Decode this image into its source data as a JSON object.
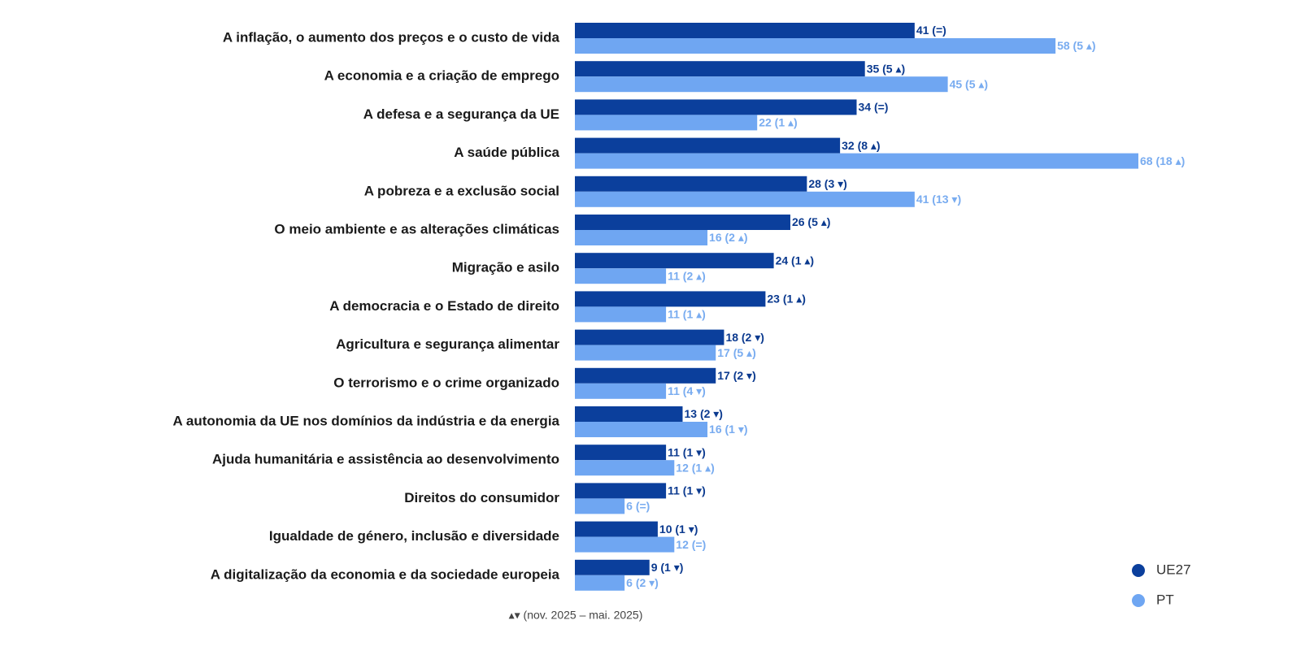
{
  "chart_data": {
    "type": "hbar",
    "categories": [
      "A inflação, o aumento dos preços e o custo de vida",
      "A economia e a criação de emprego",
      "A defesa e a segurança da UE",
      "A saúde pública",
      "A pobreza e a exclusão social",
      "O meio ambiente e as alterações climáticas",
      "Migração e asilo",
      "A democracia e o Estado de direito",
      "Agricultura e segurança alimentar",
      "O terrorismo e o crime organizado",
      "A autonomia da UE nos domínios da indústria e da energia",
      "Ajuda humanitária e assistência ao desenvolvimento",
      "Direitos do consumidor",
      "Igualdade de género, inclusão e diversidade",
      "A digitalização da economia e da sociedade europeia"
    ],
    "series": [
      {
        "name": "UE27",
        "color": "#0b3f9c",
        "label_color": "#0b3a8f",
        "values": [
          41,
          35,
          34,
          32,
          28,
          26,
          24,
          23,
          18,
          17,
          13,
          11,
          11,
          10,
          9
        ],
        "value_labels": [
          "41 (=)",
          "35 (5 ▴)",
          "34 (=)",
          "32 (8 ▴)",
          "28 (3 ▾)",
          "26 (5 ▴)",
          "24 (1 ▴)",
          "23 (1 ▴)",
          "18 (2 ▾)",
          "17 (2 ▾)",
          "13 (2 ▾)",
          "11 (1 ▾)",
          "11 (1 ▾)",
          "10 (1 ▾)",
          "9 (1 ▾)"
        ]
      },
      {
        "name": "PT",
        "color": "#6fa6f2",
        "label_color": "#79acf0",
        "values": [
          58,
          45,
          22,
          68,
          41,
          16,
          11,
          11,
          17,
          11,
          16,
          12,
          6,
          12,
          6
        ],
        "value_labels": [
          "58 (5 ▴)",
          "45 (5 ▴)",
          "22 (1 ▴)",
          "68 (18 ▴)",
          "41 (13 ▾)",
          "16 (2 ▴)",
          "11 (2 ▴)",
          "11 (1 ▴)",
          "17 (5 ▴)",
          "11 (4 ▾)",
          "16 (1 ▾)",
          "12 (1 ▴)",
          "6 (=)",
          "12 (=)",
          "6 (2 ▾)"
        ]
      }
    ],
    "note": "▴▾ (nov. 2025 – mai. 2025)",
    "legend": "bottom-right"
  }
}
